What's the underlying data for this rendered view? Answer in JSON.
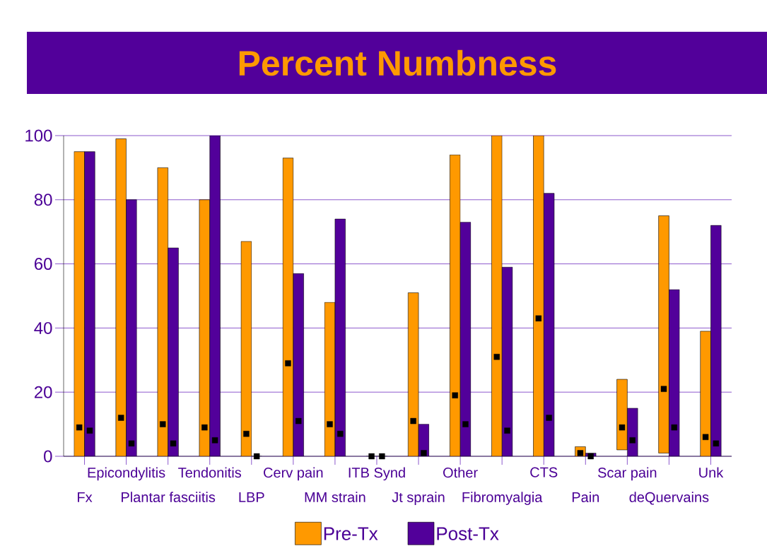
{
  "chart_data": {
    "type": "bar",
    "title": "Percent Numbness",
    "categories": [
      "Fx",
      "Epicondylitis",
      "Plantar fasciitis",
      "Tendonitis",
      "LBP",
      "Cerv pain",
      "MM strain",
      "ITB Synd",
      "Jt sprain",
      "Other",
      "Fibromyalgia",
      "CTS",
      "Pain",
      "Scar pain",
      "deQuervains",
      "Unk"
    ],
    "series": [
      {
        "name": "Pre-Tx",
        "color": "#ff9900",
        "values": [
          95,
          99,
          90,
          80,
          67,
          93,
          48,
          0,
          51,
          94,
          100,
          100,
          3,
          22,
          74,
          39
        ],
        "base": [
          null,
          null,
          null,
          null,
          null,
          null,
          null,
          null,
          null,
          null,
          null,
          null,
          null,
          2,
          1,
          null
        ]
      },
      {
        "name": "Post-Tx",
        "color": "#52009a",
        "values": [
          95,
          80,
          65,
          100,
          0,
          57,
          74,
          0,
          10,
          73,
          59,
          82,
          1,
          15,
          52,
          72
        ]
      },
      {
        "type": "scatter",
        "color": "#000000",
        "marker": "square",
        "values": [
          9,
          12,
          10,
          9,
          7,
          29,
          10,
          0,
          11,
          19,
          31,
          43,
          1,
          9,
          21,
          6
        ]
      },
      {
        "type": "scatter",
        "color": "#000000",
        "marker": "square",
        "values": [
          8,
          4,
          4,
          5,
          0,
          11,
          7,
          0,
          1,
          10,
          8,
          12,
          0,
          5,
          9,
          4
        ]
      }
    ],
    "ylim": [
      0,
      100
    ],
    "yticks": [
      0,
      20,
      40,
      60,
      80,
      100
    ],
    "grid": "y",
    "legend": "bottom"
  }
}
